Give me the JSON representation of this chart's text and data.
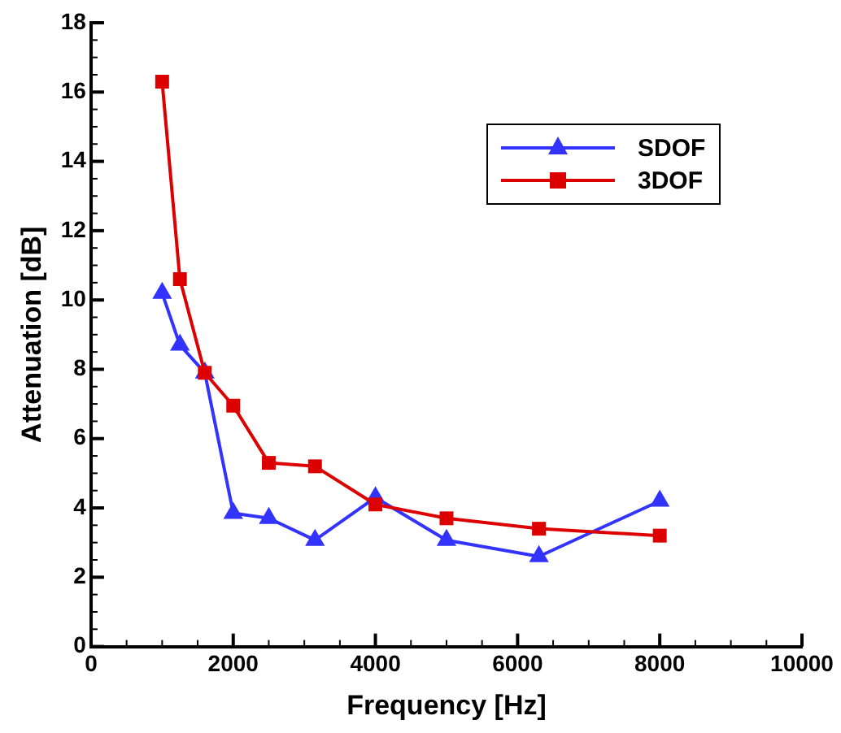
{
  "chart_data": {
    "type": "line",
    "xlabel": "Frequency [Hz]",
    "ylabel": "Attenuation [dB]",
    "x": [
      1000,
      1250,
      1600,
      2000,
      2500,
      3150,
      4000,
      5000,
      6300,
      8000
    ],
    "series": [
      {
        "name": "SDOF",
        "color": "#3333ff",
        "marker": "triangle",
        "values": [
          10.2,
          8.7,
          7.9,
          3.85,
          3.7,
          3.07,
          4.3,
          3.07,
          2.6,
          4.2
        ]
      },
      {
        "name": "3DOF",
        "color": "#dd0000",
        "marker": "square",
        "values": [
          16.3,
          10.6,
          7.9,
          6.95,
          5.3,
          5.2,
          4.1,
          3.7,
          3.4,
          3.2
        ]
      }
    ],
    "xlim": [
      0,
      10000
    ],
    "xticks": [
      0,
      {
        "value": 500,
        "label": null
      },
      2000,
      {
        "value": 1000,
        "label": null
      },
      {
        "value": 1500,
        "label": null
      },
      {
        "value": 2500,
        "label": null
      },
      {
        "value": 3000,
        "label": null
      },
      {
        "value": 3500,
        "label": null
      },
      4000,
      {
        "value": 4500,
        "label": null
      },
      {
        "value": 5000,
        "label": null
      },
      {
        "value": 5500,
        "label": null
      },
      6000,
      {
        "value": 6500,
        "label": null
      },
      {
        "value": 7000,
        "label": null
      },
      {
        "value": 7500,
        "label": null
      },
      8000,
      {
        "value": 8500,
        "label": null
      },
      {
        "value": 9000,
        "label": null
      },
      {
        "value": 9500,
        "label": null
      },
      10000
    ],
    "ylim": [
      0,
      18
    ],
    "yticks": [
      0,
      {
        "value": 0.5,
        "label": null
      },
      {
        "value": 1,
        "label": null
      },
      {
        "value": 1.5,
        "label": null
      },
      2,
      {
        "value": 2.5,
        "label": null
      },
      {
        "value": 3,
        "label": null
      },
      {
        "value": 3.5,
        "label": null
      },
      4,
      {
        "value": 4.5,
        "label": null
      },
      {
        "value": 5,
        "label": null
      },
      {
        "value": 5.5,
        "label": null
      },
      6,
      {
        "value": 6.5,
        "label": null
      },
      {
        "value": 7,
        "label": null
      },
      {
        "value": 7.5,
        "label": null
      },
      8,
      {
        "value": 8.5,
        "label": null
      },
      {
        "value": 9,
        "label": null
      },
      {
        "value": 9.5,
        "label": null
      },
      10,
      {
        "value": 10.5,
        "label": null
      },
      {
        "value": 11,
        "label": null
      },
      {
        "value": 11.5,
        "label": null
      },
      12,
      {
        "value": 12.5,
        "label": null
      },
      {
        "value": 13,
        "label": null
      },
      {
        "value": 13.5,
        "label": null
      },
      14,
      {
        "value": 14.5,
        "label": null
      },
      {
        "value": 15,
        "label": null
      },
      {
        "value": 15.5,
        "label": null
      },
      16,
      {
        "value": 16.5,
        "label": null
      },
      {
        "value": 17,
        "label": null
      },
      {
        "value": 17.5,
        "label": null
      },
      18
    ],
    "grid": false,
    "legend": "top right",
    "line_style": "solid"
  }
}
